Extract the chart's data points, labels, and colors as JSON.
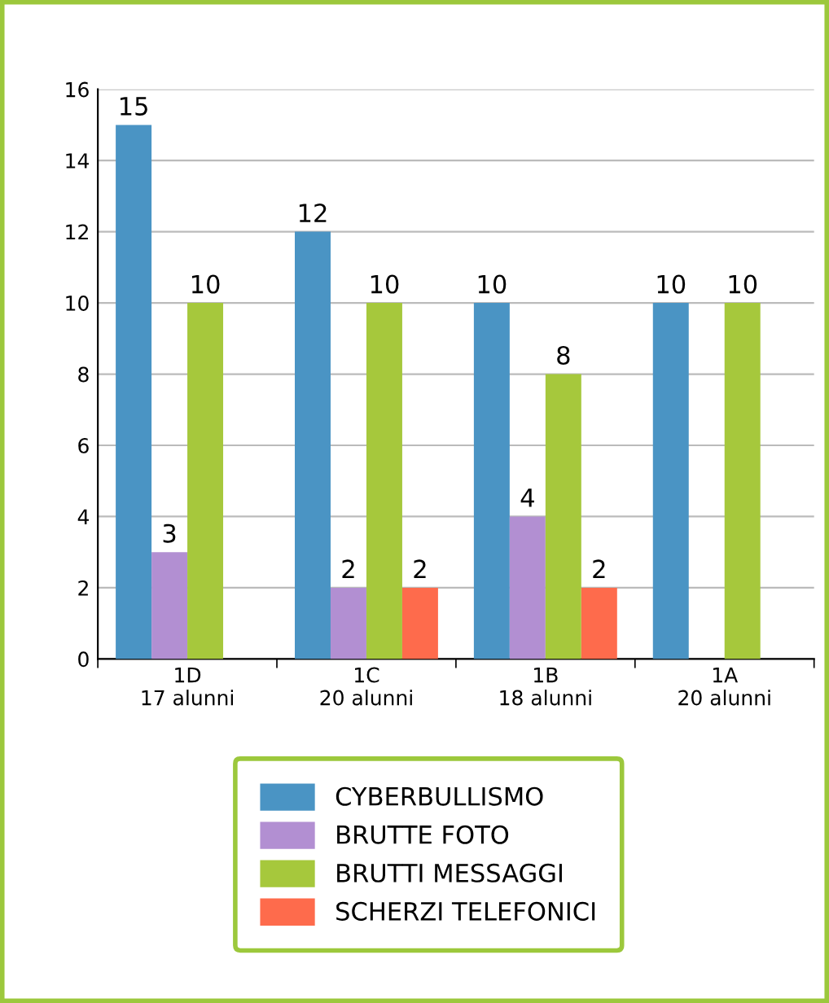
{
  "chart_data": {
    "type": "bar",
    "categories": [
      "1D\n17 alunni",
      "1C\n20 alunni",
      "1B\n18 alunni",
      "1A\n20 alunni"
    ],
    "series": [
      {
        "name": "CYBERBULLISMO",
        "color": "#4a94c4",
        "values": [
          15,
          12,
          10,
          10
        ]
      },
      {
        "name": "BRUTTE FOTO",
        "color": "#b28fd2",
        "values": [
          3,
          2,
          4,
          null
        ]
      },
      {
        "name": "BRUTTI MESSAGGI",
        "color": "#a6c83c",
        "values": [
          10,
          10,
          8,
          10
        ]
      },
      {
        "name": "SCHERZI TELEFONICI",
        "color": "#fe6b4c",
        "values": [
          null,
          2,
          2,
          null
        ]
      }
    ],
    "ylim": [
      0,
      16
    ],
    "yticks": [
      0,
      2,
      4,
      6,
      8,
      10,
      12,
      14,
      16
    ],
    "grid": "y",
    "legend": "bottom",
    "data_labels": true
  }
}
